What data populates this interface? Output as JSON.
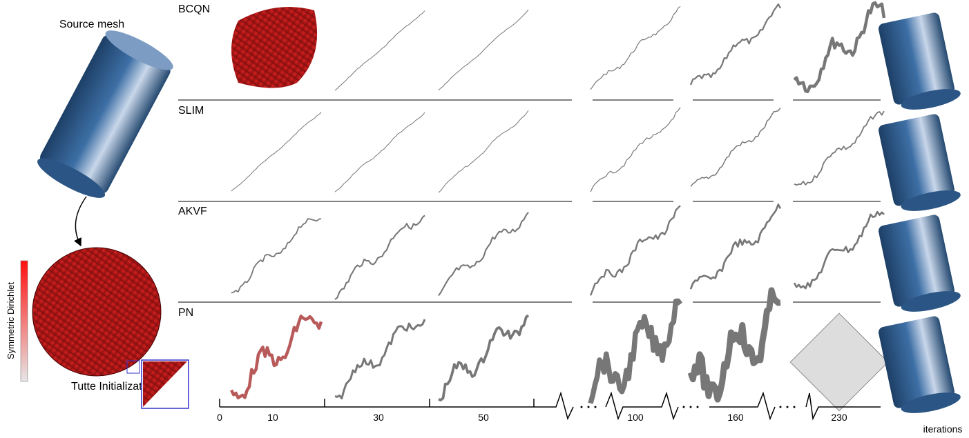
{
  "figure": {
    "source_label": "Source mesh",
    "init_label": "Tutte Initialization",
    "colorbar_label": "Symmetric Dirichlet",
    "methods": [
      "BCQN",
      "SLIM",
      "AKVF",
      "PN"
    ],
    "axis": {
      "ticks": [
        "0",
        "10",
        "30",
        "50",
        "100",
        "160",
        "230"
      ],
      "label": "iterations"
    }
  }
}
